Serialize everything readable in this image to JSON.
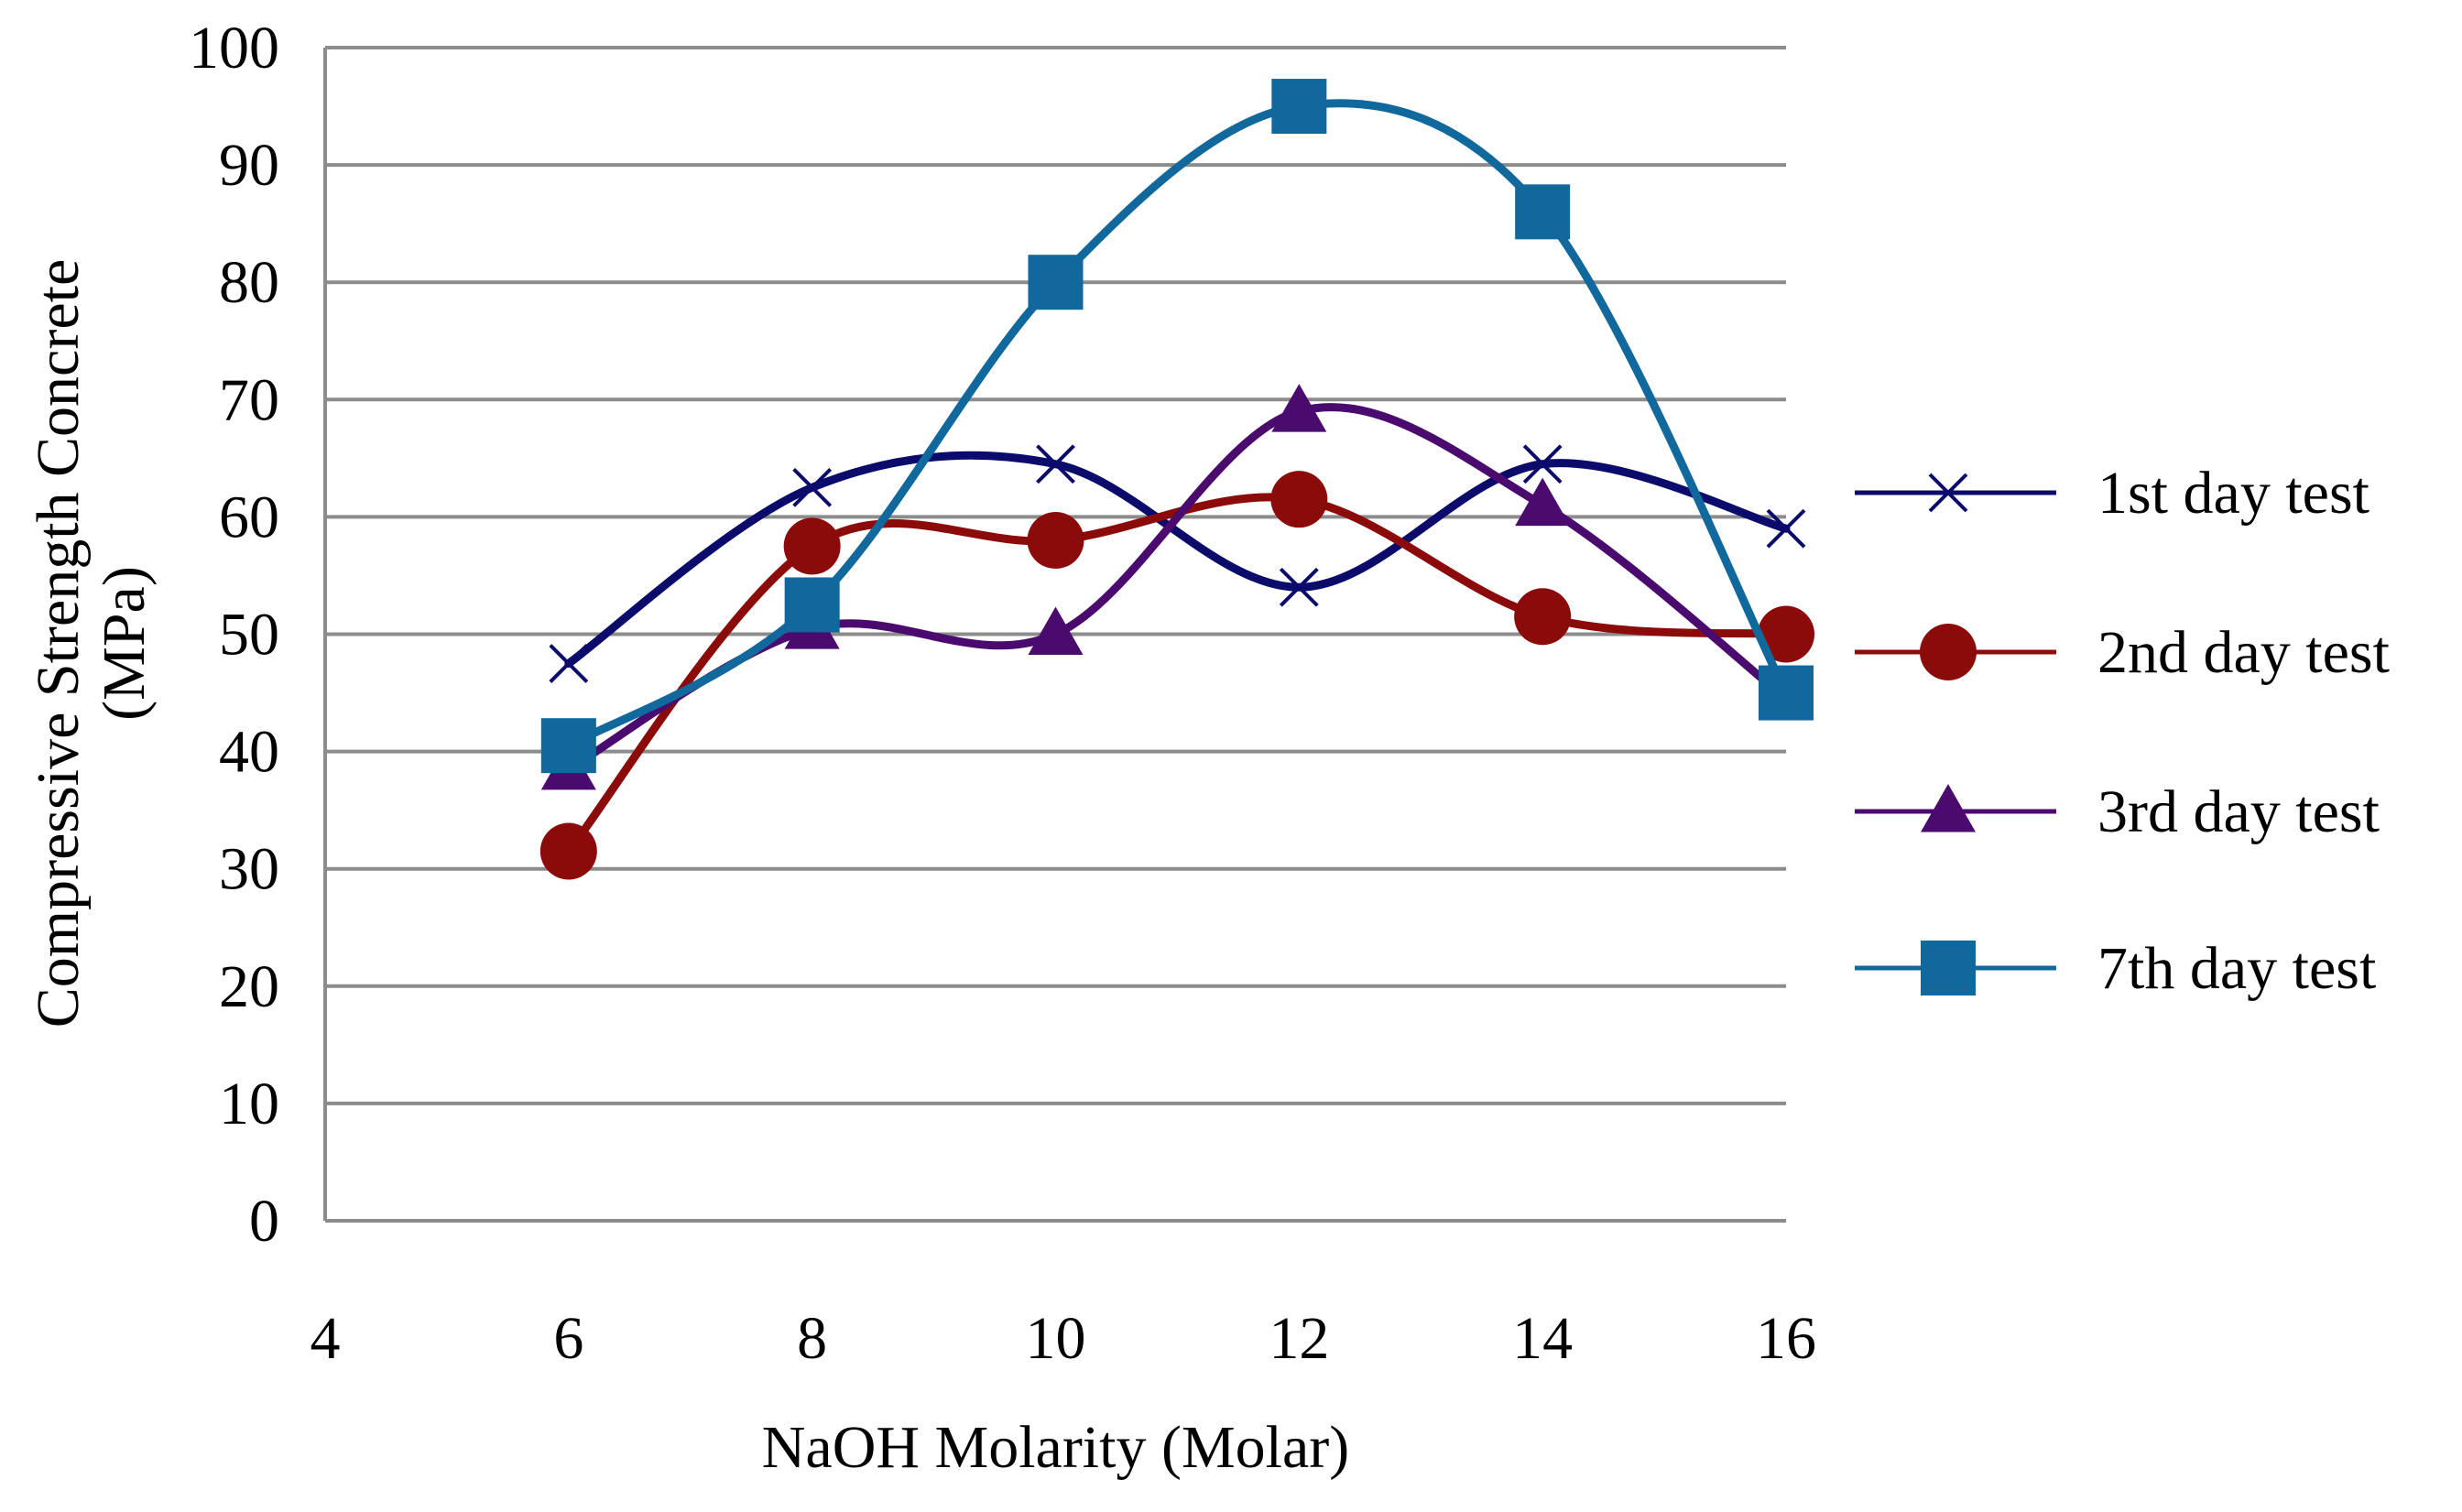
{
  "chart_data": {
    "type": "line",
    "smooth": true,
    "title": "",
    "xlabel": "NaOH Molarity (Molar)",
    "ylabel_lines": [
      "Compressive Strength Concrete",
      "(MPa)"
    ],
    "xlim": [
      4,
      16
    ],
    "ylim": [
      0,
      100
    ],
    "xticks": [
      4,
      6,
      8,
      10,
      12,
      14,
      16
    ],
    "yticks": [
      0,
      10,
      20,
      30,
      40,
      50,
      60,
      70,
      80,
      90,
      100
    ],
    "grid": "horizontal",
    "legend_position": "right",
    "series": [
      {
        "name": "1st day test",
        "color": "#0b0b6b",
        "marker": "x",
        "x": [
          6,
          8,
          10,
          12,
          14,
          16
        ],
        "y": [
          47.5,
          62.5,
          64.5,
          54,
          64.5,
          59
        ]
      },
      {
        "name": "2nd day test",
        "color": "#8b0a0a",
        "marker": "circle",
        "x": [
          6,
          8,
          10,
          12,
          14,
          16
        ],
        "y": [
          31.5,
          57.5,
          58,
          61.5,
          51.5,
          50
        ]
      },
      {
        "name": "3rd day test",
        "color": "#4a0a6e",
        "marker": "triangle",
        "x": [
          6,
          8,
          10,
          12,
          14,
          16
        ],
        "y": [
          38.5,
          50.5,
          50,
          69,
          61,
          44.5
        ]
      },
      {
        "name": "7th day test",
        "color": "#11689d",
        "marker": "square",
        "x": [
          6,
          8,
          10,
          12,
          14,
          16
        ],
        "y": [
          40.5,
          52.5,
          80,
          95,
          86,
          45
        ]
      }
    ]
  }
}
